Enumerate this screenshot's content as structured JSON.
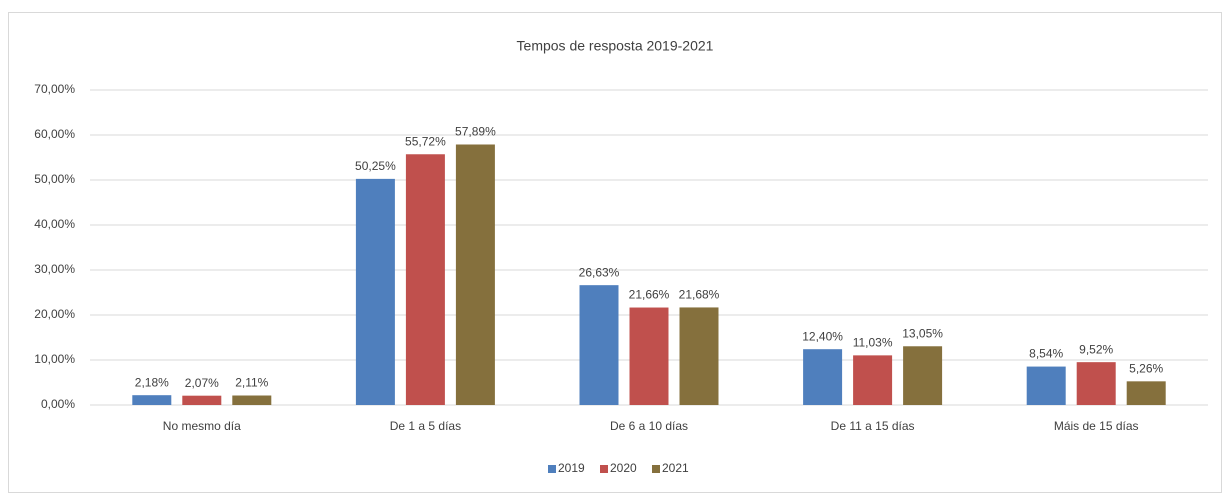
{
  "chart_data": {
    "type": "bar",
    "title": "Tempos de resposta 2019-2021",
    "categories": [
      "No mesmo día",
      "De 1 a 5 días",
      "De 6 a 10 días",
      "De 11 a 15 días",
      "Máis de 15 días"
    ],
    "series": [
      {
        "name": "2019",
        "color": "#4f7fbd",
        "values": [
          2.18,
          50.25,
          26.63,
          12.4,
          8.54
        ],
        "value_labels": [
          "2,18%",
          "50,25%",
          "26,63%",
          "12,40%",
          "8,54%"
        ]
      },
      {
        "name": "2020",
        "color": "#c0504d",
        "values": [
          2.07,
          55.72,
          21.66,
          11.03,
          9.52
        ],
        "value_labels": [
          "2,07%",
          "55,72%",
          "21,66%",
          "11,03%",
          "9,52%"
        ]
      },
      {
        "name": "2021",
        "color": "#85703d",
        "values": [
          2.11,
          57.89,
          21.68,
          13.05,
          5.26
        ],
        "value_labels": [
          "2,11%",
          "57,89%",
          "21,68%",
          "13,05%",
          "5,26%"
        ]
      }
    ],
    "ylim": [
      0,
      70
    ],
    "yticks": [
      {
        "value": 0,
        "label": "0,00%"
      },
      {
        "value": 10,
        "label": "10,00%"
      },
      {
        "value": 20,
        "label": "20,00%"
      },
      {
        "value": 30,
        "label": "30,00%"
      },
      {
        "value": 40,
        "label": "40,00%"
      },
      {
        "value": 50,
        "label": "50,00%"
      },
      {
        "value": 60,
        "label": "60,00%"
      },
      {
        "value": 70,
        "label": "70,00%"
      }
    ],
    "grid": true,
    "legend": "bottom"
  }
}
